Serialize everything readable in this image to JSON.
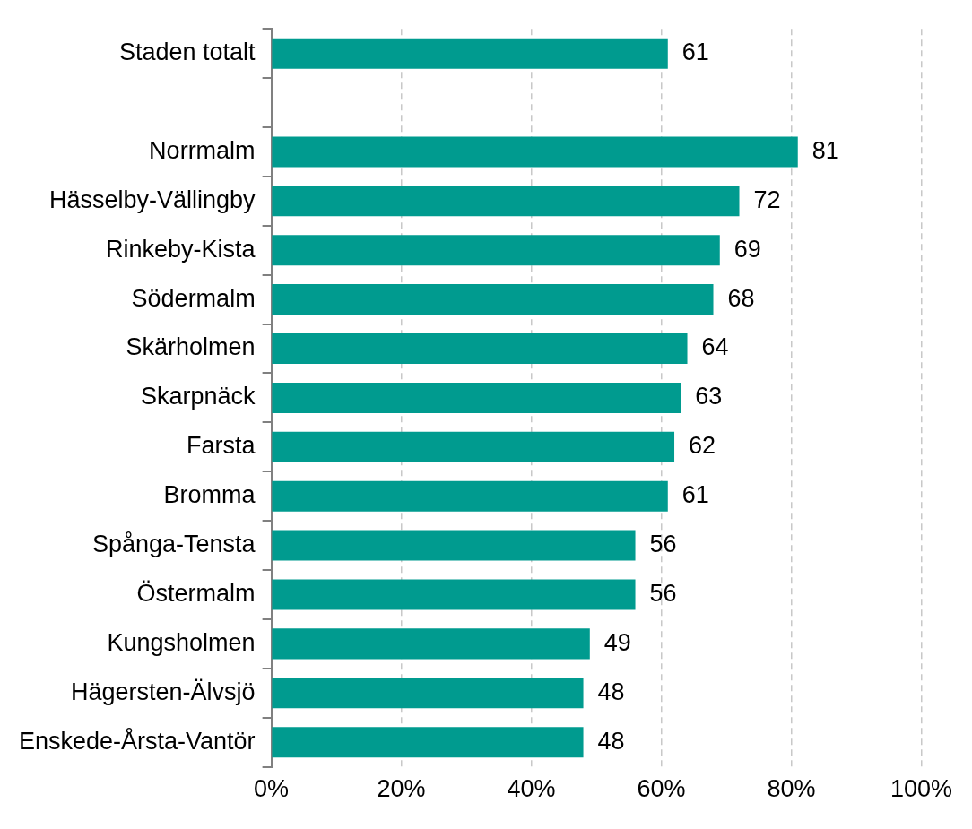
{
  "chart_data": {
    "type": "bar",
    "orientation": "horizontal",
    "categories": [
      "Staden totalt",
      null,
      "Norrmalm",
      "Hässelby-Vällingby",
      "Rinkeby-Kista",
      "Södermalm",
      "Skärholmen",
      "Skarpnäck",
      "Farsta",
      "Bromma",
      "Spånga-Tensta",
      "Östermalm",
      "Kungsholmen",
      "Hägersten-Älvsjö",
      "Enskede-Årsta-Vantör"
    ],
    "values": [
      61,
      null,
      81,
      72,
      69,
      68,
      64,
      63,
      62,
      61,
      56,
      56,
      49,
      48,
      48
    ],
    "color": "#009b8f",
    "xlim": [
      0,
      100
    ],
    "xticks": [
      {
        "value": 0,
        "label": "0%"
      },
      {
        "value": 20,
        "label": "20%"
      },
      {
        "value": 40,
        "label": "40%"
      },
      {
        "value": 60,
        "label": "60%"
      },
      {
        "value": 80,
        "label": "80%"
      },
      {
        "value": 100,
        "label": "100%"
      }
    ],
    "grid": "x",
    "data_labels": true,
    "legend": false
  }
}
